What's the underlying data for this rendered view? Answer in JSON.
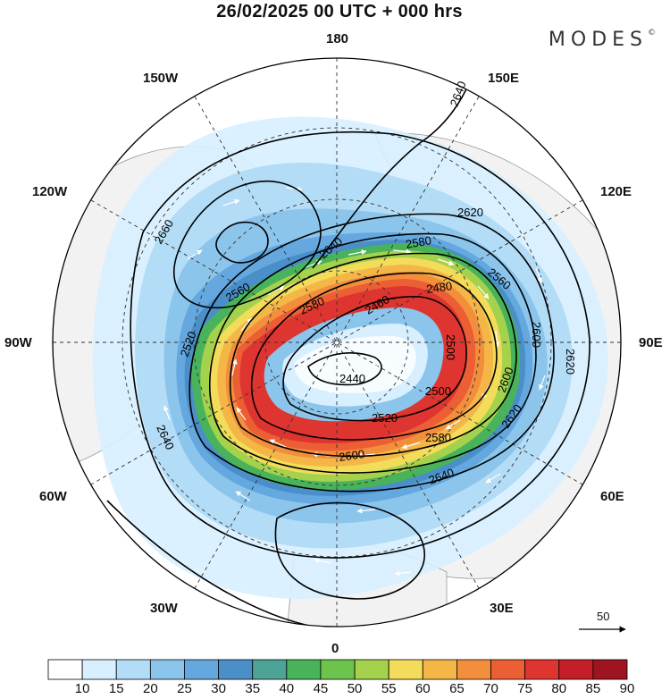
{
  "title": "26/02/2025  00 UTC  + 000 hrs",
  "brand": {
    "name": "MODES",
    "mark": "©"
  },
  "lon_labels": {
    "top": "180",
    "bottom": "0",
    "left": "90W",
    "right": "90E",
    "w150": "150W",
    "e150": "150E",
    "w120": "120W",
    "e120": "120E",
    "w60": "60W",
    "e60": "60E",
    "w30": "30W",
    "e30": "30E"
  },
  "contour_labels": [
    "2640",
    "2620",
    "2580",
    "2560",
    "2660",
    "2640",
    "2560",
    "2580",
    "2480",
    "2460",
    "2500",
    "2600",
    "2520",
    "2440",
    "2500",
    "2520",
    "2580",
    "2620",
    "2600",
    "2620",
    "2640",
    "2640",
    "2600"
  ],
  "vector_scale": {
    "value": "50"
  },
  "colorbar": {
    "ticks": [
      "10",
      "15",
      "20",
      "25",
      "30",
      "35",
      "40",
      "45",
      "50",
      "55",
      "60",
      "65",
      "70",
      "75",
      "80",
      "85",
      "90"
    ],
    "colors": [
      "#ffffff",
      "#d7efff",
      "#b3dcf6",
      "#8cc5ec",
      "#64a8df",
      "#4a8fc8",
      "#4ca396",
      "#48b35a",
      "#6cc44c",
      "#a4d24c",
      "#f2dc5a",
      "#f5b648",
      "#f28e3c",
      "#ec5e34",
      "#de3530",
      "#c41f28",
      "#9e1420"
    ]
  },
  "colors": {
    "land": "#f2f2f2",
    "coast": "#8a8a8a",
    "contour": "#000000",
    "grid": "#333333"
  }
}
